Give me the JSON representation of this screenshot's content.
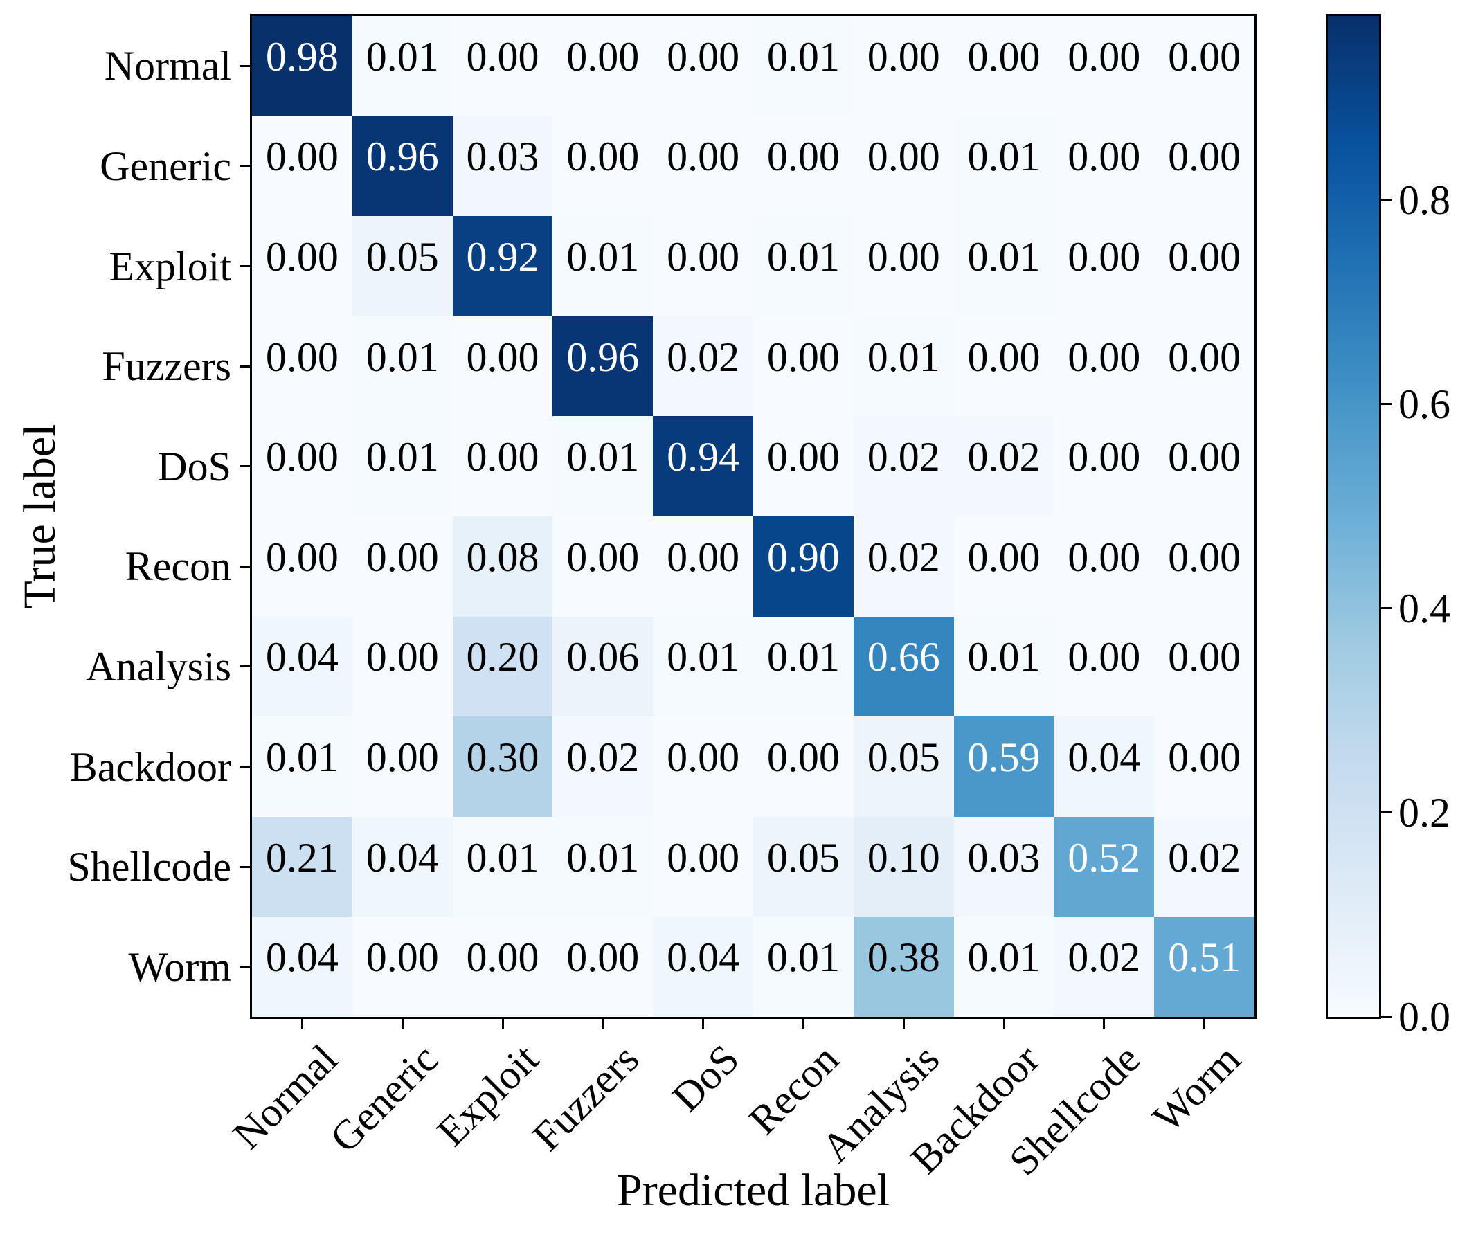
{
  "chart_data": {
    "type": "heatmap",
    "title": "",
    "xlabel": "Predicted label",
    "ylabel": "True label",
    "x_categories": [
      "Normal",
      "Generic",
      "Exploit",
      "Fuzzers",
      "DoS",
      "Recon",
      "Analysis",
      "Backdoor",
      "Shellcode",
      "Worm"
    ],
    "y_categories": [
      "Normal",
      "Generic",
      "Exploit",
      "Fuzzers",
      "DoS",
      "Recon",
      "Analysis",
      "Backdoor",
      "Shellcode",
      "Worm"
    ],
    "matrix": [
      [
        0.98,
        0.01,
        0.0,
        0.0,
        0.0,
        0.01,
        0.0,
        0.0,
        0.0,
        0.0
      ],
      [
        0.0,
        0.96,
        0.03,
        0.0,
        0.0,
        0.0,
        0.0,
        0.01,
        0.0,
        0.0
      ],
      [
        0.0,
        0.05,
        0.92,
        0.01,
        0.0,
        0.01,
        0.0,
        0.01,
        0.0,
        0.0
      ],
      [
        0.0,
        0.01,
        0.0,
        0.96,
        0.02,
        0.0,
        0.01,
        0.0,
        0.0,
        0.0
      ],
      [
        0.0,
        0.01,
        0.0,
        0.01,
        0.94,
        0.0,
        0.02,
        0.02,
        0.0,
        0.0
      ],
      [
        0.0,
        0.0,
        0.08,
        0.0,
        0.0,
        0.9,
        0.02,
        0.0,
        0.0,
        0.0
      ],
      [
        0.04,
        0.0,
        0.2,
        0.06,
        0.01,
        0.01,
        0.66,
        0.01,
        0.0,
        0.0
      ],
      [
        0.01,
        0.0,
        0.3,
        0.02,
        0.0,
        0.0,
        0.05,
        0.59,
        0.04,
        0.0
      ],
      [
        0.21,
        0.04,
        0.01,
        0.01,
        0.0,
        0.05,
        0.1,
        0.03,
        0.52,
        0.02
      ],
      [
        0.04,
        0.0,
        0.0,
        0.0,
        0.04,
        0.01,
        0.38,
        0.01,
        0.02,
        0.51
      ]
    ],
    "value_decimals": 2,
    "grid": false,
    "colorbar": {
      "tick_labels": [
        "0.0",
        "0.2",
        "0.4",
        "0.6",
        "0.8"
      ],
      "vmin": 0.0,
      "vmax": 0.98,
      "position": "right"
    },
    "colormap": {
      "name": "Blues",
      "anchors": [
        "#f7fbff",
        "#deebf7",
        "#c6dbef",
        "#9ecae1",
        "#6baed6",
        "#4292c6",
        "#2171b5",
        "#08519c",
        "#08306b"
      ]
    },
    "cell_text_colors": {
      "dark_text": "#000000",
      "light_text": "#ffffff",
      "white_text_threshold": 0.49
    }
  }
}
